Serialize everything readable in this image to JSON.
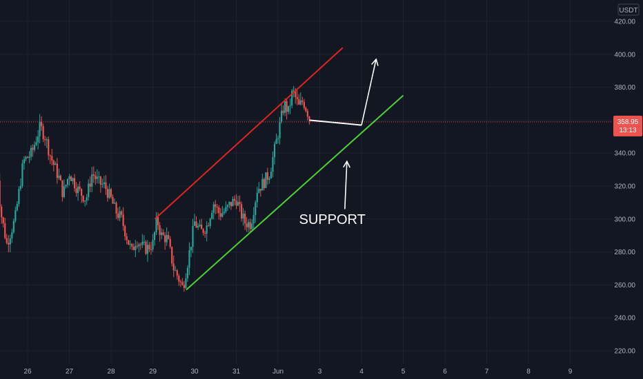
{
  "chart_data": {
    "type": "candlestick",
    "currency": "USDT",
    "last_price": "358.95",
    "countdown": "13:13",
    "y_ticks": [
      220,
      240,
      260,
      280,
      300,
      320,
      340,
      360,
      380,
      400,
      420
    ],
    "y_tick_labels": [
      "220.00",
      "240.00",
      "260.00",
      "280.00",
      "300.00",
      "320.00",
      "340.00",
      "360.00",
      "380.00",
      "400.00",
      "420.00"
    ],
    "ylim": [
      215,
      428
    ],
    "x_ticks": [
      "26",
      "27",
      "28",
      "29",
      "30",
      "31",
      "Jun",
      "3",
      "4",
      "5",
      "6",
      "7",
      "8",
      "9"
    ],
    "x_tick_days": [
      0,
      1,
      2,
      3,
      4,
      5,
      6,
      7,
      8,
      9,
      10,
      11,
      12,
      13
    ],
    "price_path": [
      [
        -0.75,
        340
      ],
      [
        -0.65,
        305
      ],
      [
        -0.5,
        285
      ],
      [
        -0.3,
        300
      ],
      [
        -0.1,
        335
      ],
      [
        0.1,
        340
      ],
      [
        0.3,
        356
      ],
      [
        0.42,
        350
      ],
      [
        0.55,
        338
      ],
      [
        0.75,
        325
      ],
      [
        0.85,
        315
      ],
      [
        1.0,
        328
      ],
      [
        1.2,
        318
      ],
      [
        1.4,
        312
      ],
      [
        1.55,
        328
      ],
      [
        1.7,
        322
      ],
      [
        1.85,
        320
      ],
      [
        2.0,
        312
      ],
      [
        2.1,
        305
      ],
      [
        2.25,
        300
      ],
      [
        2.4,
        287
      ],
      [
        2.5,
        280
      ],
      [
        2.6,
        288
      ],
      [
        2.75,
        283
      ],
      [
        2.85,
        282
      ],
      [
        3.0,
        285
      ],
      [
        3.1,
        300
      ],
      [
        3.2,
        290
      ],
      [
        3.35,
        288
      ],
      [
        3.5,
        270
      ],
      [
        3.6,
        265
      ],
      [
        3.72,
        258
      ],
      [
        3.85,
        276
      ],
      [
        4.0,
        298
      ],
      [
        4.15,
        292
      ],
      [
        4.3,
        296
      ],
      [
        4.45,
        310
      ],
      [
        4.6,
        303
      ],
      [
        4.75,
        305
      ],
      [
        4.85,
        309
      ],
      [
        5.0,
        312
      ],
      [
        5.1,
        304
      ],
      [
        5.2,
        298
      ],
      [
        5.35,
        297
      ],
      [
        5.5,
        318
      ],
      [
        5.65,
        322
      ],
      [
        5.8,
        328
      ],
      [
        6.0,
        352
      ],
      [
        6.15,
        370
      ],
      [
        6.25,
        365
      ],
      [
        6.35,
        378
      ],
      [
        6.5,
        368
      ],
      [
        6.6,
        372
      ],
      [
        6.75,
        362
      ]
    ],
    "price_range": [
      258,
      380
    ],
    "trendlines": [
      {
        "name": "resistance",
        "color": "#e02424",
        "from": [
          3.05,
          300
        ],
        "to": [
          7.55,
          404
        ]
      },
      {
        "name": "support",
        "color": "#4cd137",
        "from": [
          3.8,
          257
        ],
        "to": [
          9.0,
          375
        ]
      },
      {
        "name": "projection",
        "color": "#ffffff",
        "from": [
          6.75,
          360
        ],
        "to": [
          8.0,
          357
        ]
      }
    ],
    "arrows": [
      {
        "name": "breakout-arrow",
        "from": [
          8.0,
          357
        ],
        "to": [
          8.35,
          397
        ]
      },
      {
        "name": "support-arrow",
        "from": [
          7.6,
          306
        ],
        "to": [
          7.65,
          335
        ]
      }
    ],
    "annotations": [
      {
        "text": "SUPPORT",
        "x": 7.3,
        "y": 297
      }
    ],
    "colors": {
      "background": "#131722",
      "grid": "#1e222d",
      "up": "#26a69a",
      "down": "#ef5350",
      "price_line": "#ef5350",
      "axis_text": "#b2b5be"
    }
  }
}
